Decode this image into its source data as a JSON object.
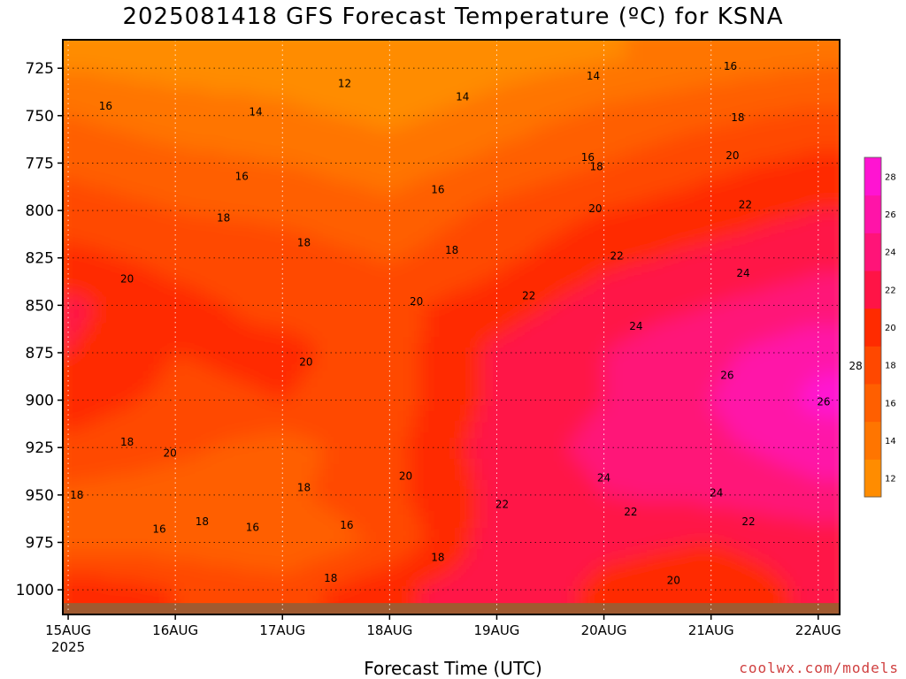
{
  "chart_data": {
    "type": "heatmap",
    "title": "2025081418 GFS Forecast Temperature (ºC) for KSNA",
    "xlabel": "Forecast Time (UTC)",
    "ylabel": "",
    "credit": "coolwx.com/models",
    "x_ticks": [
      "15AUG",
      "16AUG",
      "17AUG",
      "18AUG",
      "19AUG",
      "20AUG",
      "21AUG",
      "22AUG"
    ],
    "x_tick_year": "2025",
    "xlim_days": [
      14.95,
      22.2
    ],
    "y_ticks": [
      725,
      750,
      775,
      800,
      825,
      850,
      875,
      900,
      925,
      950,
      975,
      1000
    ],
    "ylim_hpa": [
      710,
      1013
    ],
    "colorbar": {
      "levels": [
        12,
        14,
        16,
        18,
        20,
        22,
        24,
        26,
        28
      ],
      "tick_labels": [
        "12",
        "14",
        "16",
        "18",
        "20",
        "22",
        "24",
        "26",
        "28"
      ],
      "colors": [
        "#ff8c00",
        "#ff7500",
        "#ff5f00",
        "#ff4800",
        "#ff2b00",
        "#ff1446",
        "#ff1478",
        "#ff14a8",
        "#ff14d2"
      ]
    },
    "ground_color": "#a05a30",
    "temperature_field": {
      "pressure_levels_hpa": [
        720,
        750,
        775,
        800,
        825,
        850,
        875,
        900,
        925,
        950,
        975,
        1000
      ],
      "times": [
        "15AUG",
        "16AUG",
        "17AUG",
        "18AUG",
        "19AUG",
        "20AUG",
        "21AUG",
        "22AUG"
      ],
      "values_c": [
        [
          13.5,
          13.0,
          12.8,
          11.0,
          13.0,
          13.8,
          14.8,
          15.5
        ],
        [
          16.0,
          15.0,
          14.5,
          13.5,
          15.0,
          16.5,
          17.5,
          18.5
        ],
        [
          17.5,
          16.5,
          16.0,
          15.0,
          16.5,
          18.0,
          19.5,
          20.5
        ],
        [
          19.0,
          18.0,
          17.5,
          16.5,
          18.5,
          20.0,
          21.0,
          22.0
        ],
        [
          20.5,
          19.5,
          19.0,
          17.8,
          19.5,
          21.5,
          22.5,
          23.5
        ],
        [
          22.5,
          20.5,
          19.5,
          19.5,
          21.0,
          23.0,
          24.0,
          25.0
        ],
        [
          22.0,
          20.0,
          20.5,
          19.0,
          22.5,
          24.0,
          25.5,
          27.5
        ],
        [
          21.0,
          19.5,
          20.0,
          19.0,
          22.5,
          24.0,
          26.0,
          28.5
        ],
        [
          19.5,
          18.5,
          17.0,
          19.5,
          23.0,
          24.5,
          25.5,
          27.0
        ],
        [
          17.5,
          17.0,
          17.5,
          19.5,
          22.5,
          24.0,
          24.5,
          25.5
        ],
        [
          17.0,
          17.0,
          16.0,
          18.5,
          23.0,
          22.5,
          22.0,
          23.0
        ],
        [
          21.5,
          20.0,
          19.0,
          21.5,
          23.5,
          21.5,
          20.5,
          22.5
        ]
      ]
    },
    "contour_labels": [
      {
        "t": "12",
        "day": 17.58,
        "p": 733
      },
      {
        "t": "14",
        "day": 16.75,
        "p": 748
      },
      {
        "t": "14",
        "day": 18.68,
        "p": 740
      },
      {
        "t": "14",
        "day": 19.9,
        "p": 729
      },
      {
        "t": "16",
        "day": 15.35,
        "p": 745
      },
      {
        "t": "16",
        "day": 19.85,
        "p": 772
      },
      {
        "t": "16",
        "day": 21.18,
        "p": 724
      },
      {
        "t": "16",
        "day": 16.62,
        "p": 782
      },
      {
        "t": "16",
        "day": 18.45,
        "p": 789
      },
      {
        "t": "18",
        "day": 16.45,
        "p": 804
      },
      {
        "t": "18",
        "day": 17.2,
        "p": 817
      },
      {
        "t": "18",
        "day": 18.58,
        "p": 821
      },
      {
        "t": "18",
        "day": 19.93,
        "p": 777
      },
      {
        "t": "18",
        "day": 21.25,
        "p": 751
      },
      {
        "t": "20",
        "day": 15.55,
        "p": 836
      },
      {
        "t": "20",
        "day": 18.25,
        "p": 848
      },
      {
        "t": "20",
        "day": 17.22,
        "p": 880
      },
      {
        "t": "20",
        "day": 19.92,
        "p": 799
      },
      {
        "t": "20",
        "day": 21.2,
        "p": 771
      },
      {
        "t": "22",
        "day": 19.3,
        "p": 845
      },
      {
        "t": "22",
        "day": 20.12,
        "p": 824
      },
      {
        "t": "22",
        "day": 21.32,
        "p": 797
      },
      {
        "t": "24",
        "day": 20.3,
        "p": 861
      },
      {
        "t": "24",
        "day": 21.3,
        "p": 833
      },
      {
        "t": "26",
        "day": 21.15,
        "p": 887
      },
      {
        "t": "26",
        "day": 22.05,
        "p": 901
      },
      {
        "t": "28",
        "day": 22.35,
        "p": 882
      },
      {
        "t": "18",
        "day": 15.55,
        "p": 922
      },
      {
        "t": "20",
        "day": 15.95,
        "p": 928
      },
      {
        "t": "18",
        "day": 15.08,
        "p": 950
      },
      {
        "t": "16",
        "day": 15.85,
        "p": 968
      },
      {
        "t": "18",
        "day": 16.25,
        "p": 964
      },
      {
        "t": "16",
        "day": 16.72,
        "p": 967
      },
      {
        "t": "18",
        "day": 17.2,
        "p": 946
      },
      {
        "t": "16",
        "day": 17.6,
        "p": 966
      },
      {
        "t": "18",
        "day": 17.45,
        "p": 994
      },
      {
        "t": "20",
        "day": 18.15,
        "p": 940
      },
      {
        "t": "18",
        "day": 18.45,
        "p": 983
      },
      {
        "t": "22",
        "day": 19.05,
        "p": 955
      },
      {
        "t": "24",
        "day": 20.0,
        "p": 941
      },
      {
        "t": "22",
        "day": 20.25,
        "p": 959
      },
      {
        "t": "24",
        "day": 21.05,
        "p": 949
      },
      {
        "t": "22",
        "day": 21.35,
        "p": 964
      },
      {
        "t": "20",
        "day": 20.65,
        "p": 995
      }
    ]
  }
}
